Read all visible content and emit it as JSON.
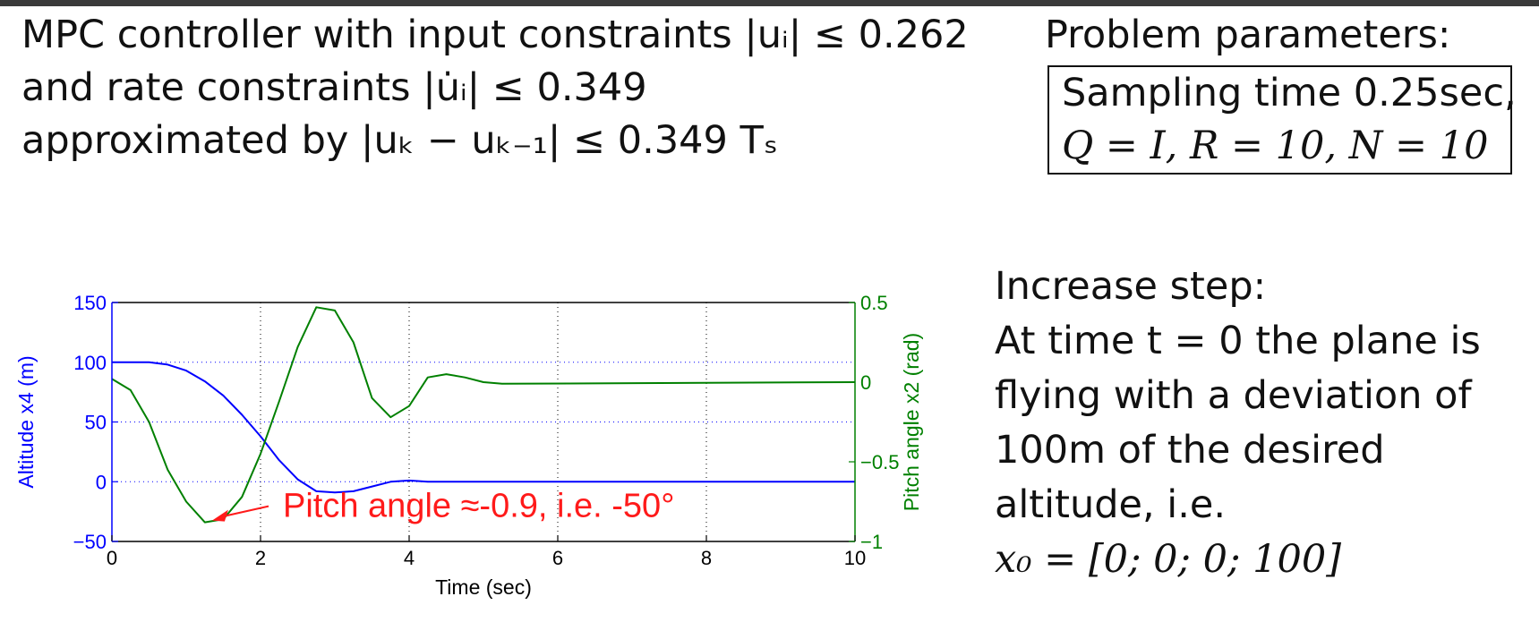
{
  "heading": {
    "line1": "MPC controller with input constraints |uᵢ| ≤ 0.262",
    "line2": "and rate constraints |u̇ᵢ| ≤ 0.349",
    "line3": "approximated by |uₖ − uₖ₋₁| ≤ 0.349 Tₛ"
  },
  "params": {
    "label": "Problem parameters:",
    "line1": "Sampling time 0.25sec,",
    "line2": "Q = I, R = 10, N = 10"
  },
  "description": {
    "line1": "Increase step:",
    "line2": "At time t = 0 the plane is",
    "line3": "flying with a deviation of",
    "line4": "100m of the desired",
    "line5": "altitude, i.e.",
    "line6": "x₀ = [0; 0; 0; 100]"
  },
  "chart_data": {
    "type": "line",
    "xlabel": "Time (sec)",
    "ylabel_left": "Altitude x4 (m)",
    "ylabel_right": "Pitch angle x2 (rad)",
    "xlim": [
      0,
      10
    ],
    "ylim_left": [
      -50,
      150
    ],
    "ylim_right": [
      -1,
      0.5
    ],
    "x_ticks": [
      0,
      2,
      4,
      6,
      8,
      10
    ],
    "y_ticks_left": [
      -50,
      0,
      50,
      100,
      150
    ],
    "y_ticks_right": [
      -1,
      -0.5,
      0,
      0.5
    ],
    "y_tick_labels_right": [
      "−1",
      "−0.5",
      "0",
      "0.5"
    ],
    "y_tick_labels_left": [
      "−50",
      "0",
      "50",
      "100",
      "150"
    ],
    "grid": true,
    "colors": {
      "altitude": "#0000ff",
      "pitch": "#008000",
      "annotation": "#ff1a1a"
    },
    "series": [
      {
        "axis": "left",
        "x": [
          0,
          0.5,
          0.75,
          1,
          1.25,
          1.5,
          1.75,
          2,
          2.25,
          2.5,
          2.75,
          3,
          3.25,
          3.5,
          3.75,
          4,
          4.25,
          10
        ],
        "y": [
          100,
          100,
          98,
          93,
          84,
          72,
          56,
          38,
          18,
          2,
          -8,
          -9,
          -8,
          -4,
          0,
          1,
          0,
          0
        ]
      },
      {
        "axis": "right",
        "x": [
          0,
          0.25,
          0.5,
          0.75,
          1,
          1.25,
          1.5,
          1.75,
          2,
          2.25,
          2.5,
          2.75,
          3,
          3.25,
          3.5,
          3.75,
          4,
          4.25,
          4.5,
          4.75,
          5,
          5.25,
          10
        ],
        "y": [
          0.02,
          -0.05,
          -0.25,
          -0.55,
          -0.75,
          -0.88,
          -0.86,
          -0.72,
          -0.45,
          -0.12,
          0.22,
          0.47,
          0.45,
          0.25,
          -0.1,
          -0.22,
          -0.15,
          0.03,
          0.05,
          0.03,
          0,
          -0.01,
          0
        ]
      }
    ],
    "annotation": {
      "text": "Pitch angle ≈-0.9, i.e. -50°",
      "x": 1.3,
      "y_right": -0.88
    }
  }
}
